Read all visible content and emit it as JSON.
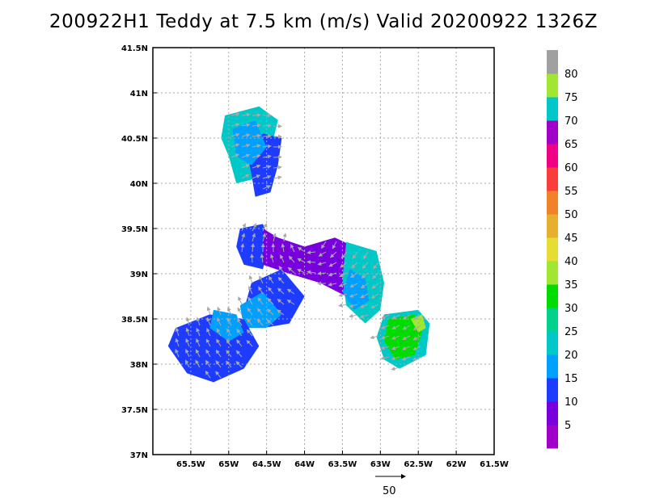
{
  "chart_data": {
    "type": "heatmap",
    "title": "200922H1 Teddy at 7.5 km (m/s) Valid 20200922 1326Z",
    "xlabel": "",
    "ylabel": "",
    "xlim": [
      -66.0,
      -61.5
    ],
    "ylim": [
      37.0,
      41.5
    ],
    "x_ticks": [
      "65.5W",
      "65W",
      "64.5W",
      "64W",
      "63.5W",
      "63W",
      "62.5W",
      "62W",
      "61.5W"
    ],
    "x_tick_values": [
      -65.5,
      -65.0,
      -64.5,
      -64.0,
      -63.5,
      -63.0,
      -62.5,
      -62.0,
      -61.5
    ],
    "y_ticks": [
      "37N",
      "37.5N",
      "38N",
      "38.5N",
      "39N",
      "39.5N",
      "40N",
      "40.5N",
      "41N",
      "41.5N"
    ],
    "y_tick_values": [
      37.0,
      37.5,
      38.0,
      38.5,
      39.0,
      39.5,
      40.0,
      40.5,
      41.0,
      41.5
    ],
    "grid": true,
    "colorbar": {
      "labels": [
        "5",
        "10",
        "15",
        "20",
        "25",
        "30",
        "35",
        "40",
        "45",
        "50",
        "55",
        "60",
        "65",
        "70",
        "75",
        "80"
      ],
      "bins": [
        {
          "min": 0,
          "max": 5,
          "color": "#a000c8"
        },
        {
          "min": 5,
          "max": 10,
          "color": "#7800dc"
        },
        {
          "min": 10,
          "max": 15,
          "color": "#1e3cff"
        },
        {
          "min": 15,
          "max": 20,
          "color": "#00a0ff"
        },
        {
          "min": 20,
          "max": 25,
          "color": "#00c8c8"
        },
        {
          "min": 25,
          "max": 30,
          "color": "#00d28c"
        },
        {
          "min": 30,
          "max": 35,
          "color": "#00dc00"
        },
        {
          "min": 35,
          "max": 40,
          "color": "#a0e632"
        },
        {
          "min": 40,
          "max": 45,
          "color": "#e6dc32"
        },
        {
          "min": 45,
          "max": 50,
          "color": "#e6af2d"
        },
        {
          "min": 50,
          "max": 55,
          "color": "#f08228"
        },
        {
          "min": 55,
          "max": 60,
          "color": "#fa3c3c"
        },
        {
          "min": 60,
          "max": 65,
          "color": "#f00082"
        },
        {
          "min": 65,
          "max": 70,
          "color": "#a000c8"
        },
        {
          "min": 70,
          "max": 75,
          "color": "#00c8c8"
        },
        {
          "min": 75,
          "max": 80,
          "color": "#a0e632"
        },
        {
          "min": 80,
          "max": 85,
          "color": "#a0a0a0"
        }
      ]
    },
    "regions": [
      {
        "name": "north-band-a",
        "color": "#00c8c8",
        "points": [
          [
            -65.05,
            40.75
          ],
          [
            -64.6,
            40.85
          ],
          [
            -64.35,
            40.7
          ],
          [
            -64.45,
            40.35
          ],
          [
            -64.65,
            40.05
          ],
          [
            -64.9,
            40.0
          ],
          [
            -65.0,
            40.3
          ],
          [
            -65.1,
            40.5
          ]
        ]
      },
      {
        "name": "north-band-b",
        "color": "#1e3cff",
        "points": [
          [
            -64.55,
            40.55
          ],
          [
            -64.3,
            40.5
          ],
          [
            -64.35,
            40.2
          ],
          [
            -64.45,
            39.9
          ],
          [
            -64.65,
            39.85
          ],
          [
            -64.7,
            40.1
          ],
          [
            -64.75,
            40.3
          ]
        ]
      },
      {
        "name": "north-core",
        "color": "#00a0ff",
        "points": [
          [
            -64.95,
            40.6
          ],
          [
            -64.65,
            40.7
          ],
          [
            -64.5,
            40.4
          ],
          [
            -64.7,
            40.2
          ],
          [
            -64.9,
            40.3
          ]
        ]
      },
      {
        "name": "center-west",
        "color": "#1e3cff",
        "points": [
          [
            -64.85,
            39.5
          ],
          [
            -64.55,
            39.55
          ],
          [
            -64.45,
            39.35
          ],
          [
            -64.55,
            39.05
          ],
          [
            -64.8,
            39.1
          ],
          [
            -64.9,
            39.3
          ]
        ]
      },
      {
        "name": "center-core",
        "color": "#7800dc",
        "points": [
          [
            -64.55,
            39.5
          ],
          [
            -64.35,
            39.4
          ],
          [
            -64.0,
            39.3
          ],
          [
            -63.6,
            39.4
          ],
          [
            -63.35,
            39.3
          ],
          [
            -63.25,
            39.0
          ],
          [
            -63.45,
            38.75
          ],
          [
            -63.8,
            38.9
          ],
          [
            -64.2,
            39.0
          ],
          [
            -64.55,
            39.1
          ]
        ]
      },
      {
        "name": "center-east-band",
        "color": "#00c8c8",
        "points": [
          [
            -63.45,
            39.35
          ],
          [
            -63.05,
            39.25
          ],
          [
            -62.95,
            38.9
          ],
          [
            -63.0,
            38.6
          ],
          [
            -63.2,
            38.45
          ],
          [
            -63.45,
            38.65
          ],
          [
            -63.5,
            38.95
          ]
        ]
      },
      {
        "name": "center-east-inner",
        "color": "#00a0ff",
        "points": [
          [
            -63.4,
            39.05
          ],
          [
            -63.2,
            38.95
          ],
          [
            -63.15,
            38.7
          ],
          [
            -63.35,
            38.6
          ],
          [
            -63.5,
            38.8
          ]
        ]
      },
      {
        "name": "middle-band-a",
        "color": "#1e3cff",
        "points": [
          [
            -64.7,
            38.9
          ],
          [
            -64.3,
            39.05
          ],
          [
            -64.0,
            38.75
          ],
          [
            -64.2,
            38.45
          ],
          [
            -64.55,
            38.4
          ],
          [
            -64.8,
            38.6
          ]
        ]
      },
      {
        "name": "middle-band-b",
        "color": "#00a0ff",
        "points": [
          [
            -64.85,
            38.65
          ],
          [
            -64.55,
            38.8
          ],
          [
            -64.3,
            38.55
          ],
          [
            -64.5,
            38.4
          ],
          [
            -64.8,
            38.4
          ]
        ]
      },
      {
        "name": "southwest-core",
        "color": "#1e3cff",
        "points": [
          [
            -65.7,
            38.4
          ],
          [
            -65.25,
            38.55
          ],
          [
            -64.8,
            38.5
          ],
          [
            -64.6,
            38.2
          ],
          [
            -64.8,
            37.95
          ],
          [
            -65.2,
            37.8
          ],
          [
            -65.55,
            37.9
          ],
          [
            -65.8,
            38.2
          ]
        ]
      },
      {
        "name": "southwest-band",
        "color": "#00a0ff",
        "points": [
          [
            -65.2,
            38.6
          ],
          [
            -64.9,
            38.55
          ],
          [
            -64.8,
            38.35
          ],
          [
            -65.0,
            38.25
          ],
          [
            -65.25,
            38.4
          ]
        ]
      },
      {
        "name": "east-outer",
        "color": "#00c8c8",
        "points": [
          [
            -62.95,
            38.55
          ],
          [
            -62.5,
            38.6
          ],
          [
            -62.35,
            38.45
          ],
          [
            -62.4,
            38.1
          ],
          [
            -62.75,
            37.95
          ],
          [
            -62.95,
            38.05
          ],
          [
            -63.05,
            38.3
          ]
        ]
      },
      {
        "name": "east-core",
        "color": "#00dc00",
        "points": [
          [
            -62.9,
            38.5
          ],
          [
            -62.55,
            38.55
          ],
          [
            -62.45,
            38.35
          ],
          [
            -62.55,
            38.1
          ],
          [
            -62.8,
            38.05
          ],
          [
            -62.95,
            38.25
          ]
        ]
      },
      {
        "name": "east-highlight",
        "color": "#a0e632",
        "points": [
          [
            -62.6,
            38.5
          ],
          [
            -62.45,
            38.55
          ],
          [
            -62.4,
            38.4
          ],
          [
            -62.5,
            38.35
          ]
        ]
      }
    ],
    "vectors_reference": {
      "label": "50"
    }
  }
}
